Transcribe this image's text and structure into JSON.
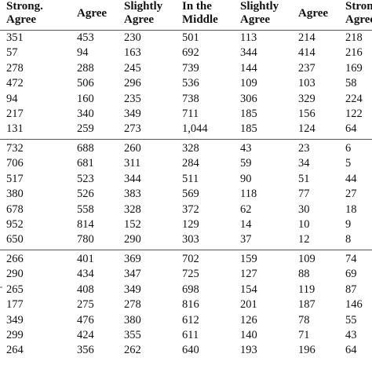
{
  "headers": [
    {
      "line1": "Strong.",
      "line2": "Agree"
    },
    {
      "line1": "Agree",
      "line2": ""
    },
    {
      "line1": "Slightly",
      "line2": "Agree"
    },
    {
      "line1": "In the",
      "line2": "Middle"
    },
    {
      "line1": "Slightly",
      "line2": "Agree"
    },
    {
      "line1": "Agree",
      "line2": ""
    },
    {
      "line1": "Strong.",
      "line2": "Agree"
    }
  ],
  "groups": [
    {
      "rows": [
        [
          "351",
          "453",
          "230",
          "501",
          "113",
          "214",
          "218"
        ],
        [
          "57",
          "94",
          "163",
          "692",
          "344",
          "414",
          "216"
        ],
        [
          "278",
          "288",
          "245",
          "739",
          "144",
          "237",
          "169"
        ],
        [
          "472",
          "506",
          "296",
          "536",
          "109",
          "103",
          "58"
        ],
        [
          "94",
          "160",
          "235",
          "738",
          "306",
          "329",
          "224"
        ],
        [
          "217",
          "340",
          "349",
          "711",
          "185",
          "156",
          "122"
        ],
        [
          "131",
          "259",
          "273",
          "1,044",
          "185",
          "124",
          "64"
        ]
      ]
    },
    {
      "rows": [
        [
          "732",
          "688",
          "260",
          "328",
          "43",
          "23",
          "6"
        ],
        [
          "706",
          "681",
          "311",
          "284",
          "59",
          "34",
          "5"
        ],
        [
          "517",
          "523",
          "344",
          "511",
          "90",
          "51",
          "44"
        ],
        [
          "380",
          "526",
          "383",
          "569",
          "118",
          "77",
          "27"
        ],
        [
          "678",
          "558",
          "328",
          "372",
          "62",
          "30",
          "18"
        ],
        [
          "952",
          "814",
          "152",
          "129",
          "14",
          "10",
          "9"
        ],
        [
          "650",
          "780",
          "290",
          "303",
          "37",
          "12",
          "8"
        ]
      ]
    },
    {
      "rows": [
        [
          "266",
          "401",
          "369",
          "702",
          "159",
          "109",
          "74"
        ],
        [
          "290",
          "434",
          "347",
          "725",
          "127",
          "88",
          "69"
        ],
        [
          "265",
          "408",
          "349",
          "698",
          "154",
          "119",
          "87"
        ],
        [
          "177",
          "275",
          "278",
          "816",
          "201",
          "187",
          "146"
        ],
        [
          "349",
          "476",
          "380",
          "612",
          "126",
          "78",
          "55"
        ],
        [
          "299",
          "424",
          "355",
          "611",
          "140",
          "71",
          "43"
        ],
        [
          "264",
          "356",
          "262",
          "640",
          "193",
          "196",
          "64"
        ]
      ]
    }
  ]
}
